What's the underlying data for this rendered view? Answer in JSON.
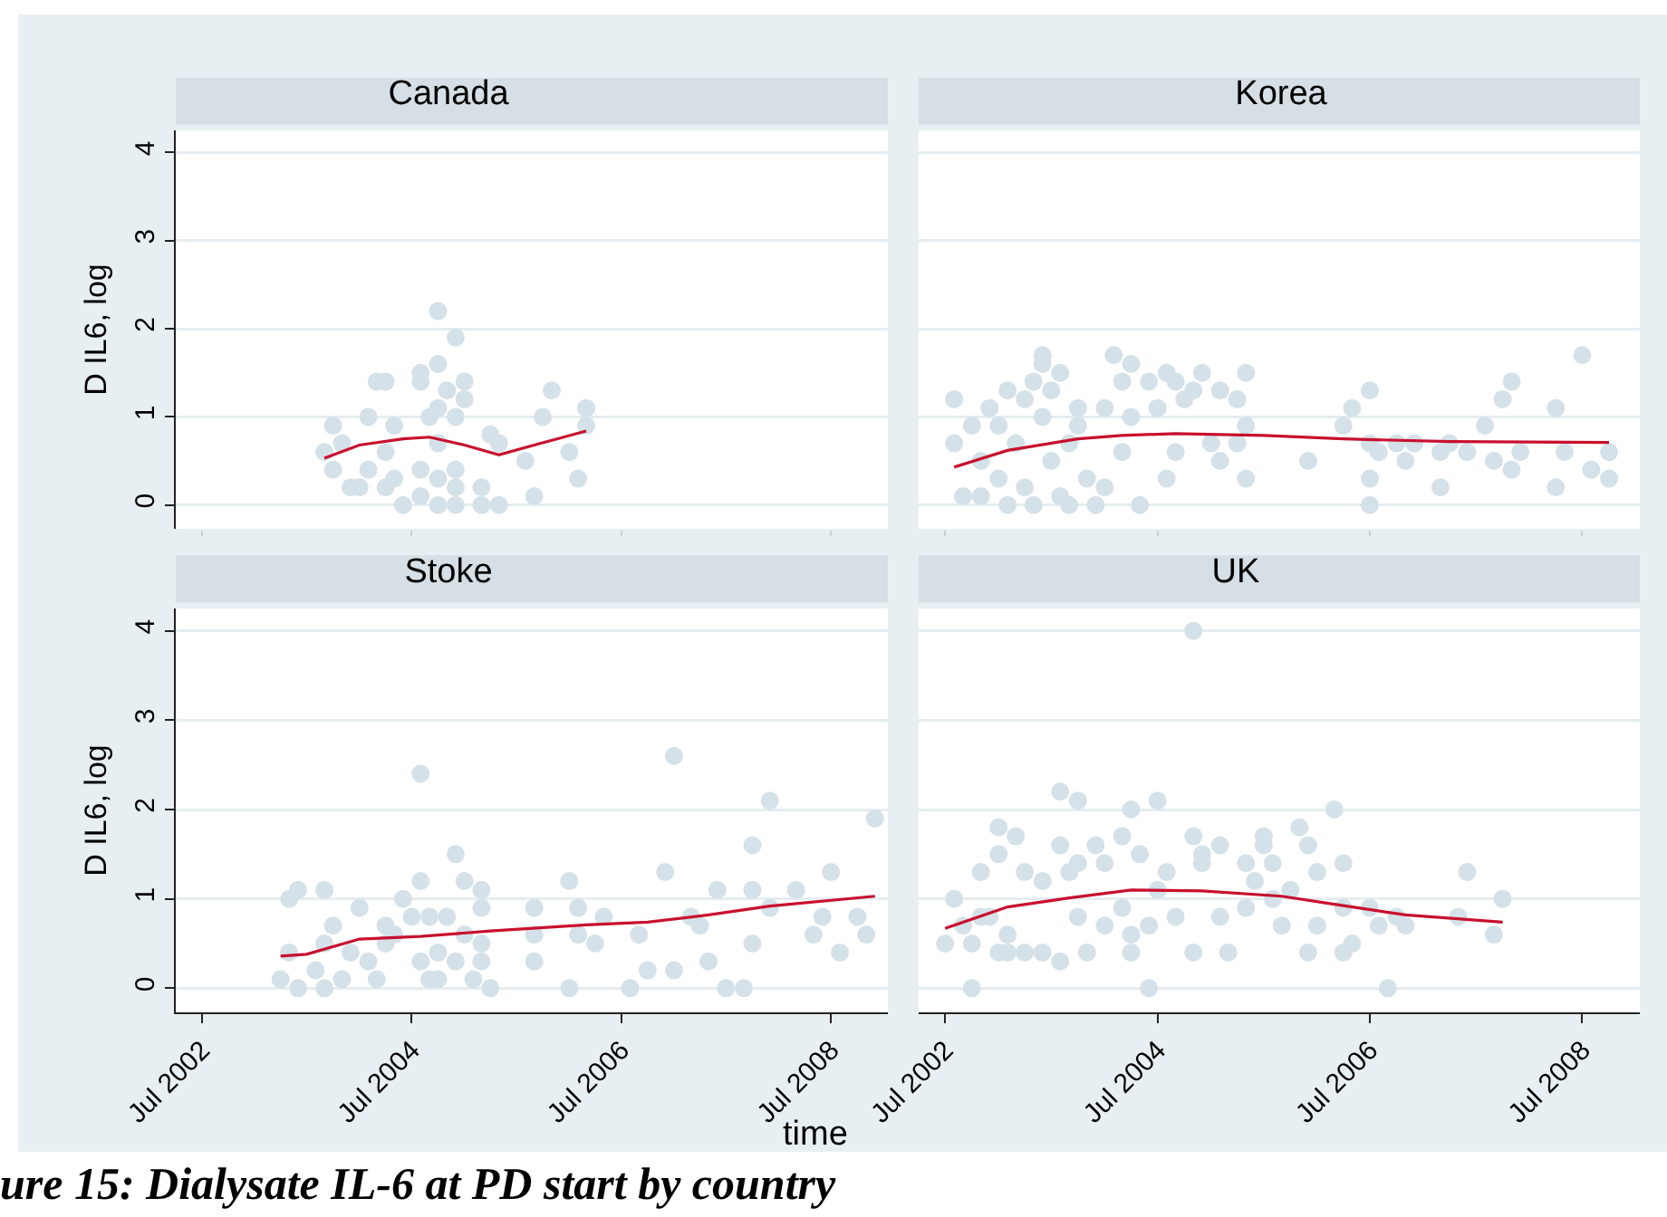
{
  "chart_data": [
    {
      "type": "scatter",
      "title": "Canada",
      "ylabel": "D IL6, log",
      "xlim": [
        "2002-04-01",
        "2009-01-15"
      ],
      "xticks": [
        {
          "value": "2002-07-01",
          "label": null
        },
        {
          "value": "2004-07-01",
          "label": null
        },
        {
          "value": "2006-07-01",
          "label": null
        },
        {
          "value": "2008-07-01",
          "label": null
        }
      ],
      "ylim": [
        -0.27,
        4.25
      ],
      "yticks": [
        0,
        1,
        2,
        3,
        4
      ],
      "grid": "y",
      "tick_labels": "y",
      "marker": "circle",
      "series": [
        {
          "color": "#d5e1e8",
          "x": [
            "2003-09",
            "2003-10",
            "2003-10",
            "2003-11",
            "2003-12",
            "2004-01",
            "2004-02",
            "2004-02",
            "2004-03",
            "2004-04",
            "2004-04",
            "2004-04",
            "2004-05",
            "2004-05",
            "2004-06",
            "2004-08",
            "2004-08",
            "2004-10",
            "2004-10",
            "2004-12",
            "2004-10",
            "2004-09",
            "2004-10",
            "2004-08",
            "2004-10",
            "2004-08",
            "2004-10",
            "2004-11",
            "2005-01",
            "2005-01",
            "2004-12",
            "2004-12",
            "2004-12",
            "2004-12",
            "2005-03",
            "2005-04",
            "2005-05",
            "2005-03",
            "2005-05",
            "2005-08",
            "2005-09",
            "2005-10",
            "2005-11",
            "2006-01",
            "2006-03",
            "2006-02",
            "2006-03"
          ],
          "values": [
            0.6,
            0.9,
            0.4,
            0.7,
            0.2,
            0.2,
            1.0,
            0.4,
            1.4,
            1.4,
            0.6,
            0.2,
            0.9,
            0.3,
            0.0,
            1.4,
            1.5,
            1.6,
            2.2,
            1.9,
            1.1,
            1.0,
            0.7,
            0.4,
            0.3,
            0.1,
            0.0,
            1.3,
            1.4,
            1.2,
            1.0,
            0.4,
            0.2,
            0.0,
            0.2,
            0.8,
            0.7,
            0.0,
            0.0,
            0.5,
            0.1,
            1.0,
            1.3,
            0.6,
            1.1,
            0.3,
            0.9
          ]
        },
        {
          "type": "line",
          "color": "#c8102e",
          "marker": "none",
          "x": [
            "2003-09",
            "2004-01",
            "2004-06",
            "2004-09",
            "2005-01",
            "2005-05",
            "2005-09",
            "2006-03"
          ],
          "values": [
            0.53,
            0.68,
            0.75,
            0.77,
            0.68,
            0.57,
            0.68,
            0.84
          ]
        }
      ]
    },
    {
      "type": "scatter",
      "title": "Korea",
      "xlim": [
        "2002-04-01",
        "2009-01-15"
      ],
      "xticks": [
        {
          "value": "2002-07-01",
          "label": null
        },
        {
          "value": "2004-07-01",
          "label": null
        },
        {
          "value": "2006-07-01",
          "label": null
        },
        {
          "value": "2008-07-01",
          "label": null
        }
      ],
      "ylim": [
        -0.27,
        4.25
      ],
      "yticks": [
        0,
        1,
        2,
        3,
        4
      ],
      "grid": "y",
      "tick_labels": false,
      "marker": "circle",
      "series": [
        {
          "color": "#d5e1e8",
          "x": [
            "2002-08",
            "2002-08",
            "2002-09",
            "2002-10",
            "2002-11",
            "2002-11",
            "2002-12",
            "2003-01",
            "2003-01",
            "2003-02",
            "2003-02",
            "2003-03",
            "2003-04",
            "2003-04",
            "2003-05",
            "2003-05",
            "2003-06",
            "2003-06",
            "2003-06",
            "2003-07",
            "2003-07",
            "2003-08",
            "2003-08",
            "2003-09",
            "2003-09",
            "2003-10",
            "2003-10",
            "2003-11",
            "2003-12",
            "2004-01",
            "2004-01",
            "2004-02",
            "2004-03",
            "2004-04",
            "2004-03",
            "2004-04",
            "2004-05",
            "2004-06",
            "2004-07",
            "2004-08",
            "2004-08",
            "2004-09",
            "2004-09",
            "2004-10",
            "2004-11",
            "2004-12",
            "2005-01",
            "2005-02",
            "2005-02",
            "2005-05",
            "2005-04",
            "2005-05",
            "2005-05",
            "2005-04",
            "2005-12",
            "2006-04",
            "2006-05",
            "2006-07",
            "2006-07",
            "2006-07",
            "2006-07",
            "2006-08",
            "2006-10",
            "2006-11",
            "2006-12",
            "2007-03",
            "2007-03",
            "2007-04",
            "2007-06",
            "2007-08",
            "2007-09",
            "2007-10",
            "2007-11",
            "2007-11",
            "2007-12",
            "2008-04",
            "2008-04",
            "2008-05",
            "2008-07",
            "2008-08",
            "2008-10",
            "2008-10"
          ],
          "values": [
            1.2,
            0.7,
            0.1,
            0.9,
            0.5,
            0.1,
            1.1,
            0.9,
            0.3,
            1.3,
            0.0,
            0.7,
            0.2,
            1.2,
            1.4,
            0.0,
            1.7,
            1.6,
            1.0,
            0.5,
            1.3,
            0.1,
            1.5,
            0.7,
            0.0,
            1.1,
            0.9,
            0.3,
            0.0,
            1.1,
            0.2,
            1.7,
            1.4,
            1.6,
            0.6,
            1.0,
            0.0,
            1.4,
            1.1,
            1.5,
            0.3,
            0.6,
            1.4,
            1.2,
            1.3,
            1.5,
            0.7,
            1.3,
            0.5,
            1.5,
            1.2,
            0.9,
            0.3,
            0.7,
            0.5,
            0.9,
            1.1,
            1.3,
            0.7,
            0.3,
            0.0,
            0.6,
            0.7,
            0.5,
            0.7,
            0.2,
            0.6,
            0.7,
            0.6,
            0.9,
            0.5,
            1.2,
            1.4,
            0.4,
            0.6,
            0.2,
            1.1,
            0.6,
            1.7,
            0.4,
            0.6,
            0.3
          ]
        },
        {
          "type": "line",
          "color": "#c8102e",
          "marker": "none",
          "x": [
            "2002-08",
            "2003-02",
            "2003-10",
            "2004-03",
            "2004-09",
            "2005-07",
            "2006-04",
            "2007-04",
            "2008-10"
          ],
          "values": [
            0.43,
            0.62,
            0.75,
            0.79,
            0.81,
            0.79,
            0.75,
            0.72,
            0.71
          ]
        }
      ]
    },
    {
      "type": "scatter",
      "title": "Stoke",
      "ylabel": "D IL6, log",
      "xlim": [
        "2002-04-01",
        "2009-01-15"
      ],
      "xticks": [
        {
          "value": "2002-07-01",
          "label": "Jul 2002"
        },
        {
          "value": "2004-07-01",
          "label": "Jul 2004"
        },
        {
          "value": "2006-07-01",
          "label": "Jul 2006"
        },
        {
          "value": "2008-07-01",
          "label": "Jul 2008"
        }
      ],
      "ylim": [
        -0.27,
        4.25
      ],
      "yticks": [
        0,
        1,
        2,
        3,
        4
      ],
      "grid": "y",
      "marker": "circle",
      "series": [
        {
          "color": "#d5e1e8",
          "x": [
            "2003-04",
            "2003-05",
            "2003-05",
            "2003-06",
            "2003-06",
            "2003-08",
            "2003-09",
            "2003-09",
            "2003-09",
            "2003-10",
            "2003-11",
            "2003-12",
            "2004-01",
            "2004-02",
            "2004-03",
            "2004-04",
            "2004-05",
            "2004-04",
            "2004-06",
            "2004-07",
            "2004-08",
            "2004-08",
            "2004-08",
            "2004-09",
            "2004-09",
            "2004-10",
            "2004-11",
            "2004-10",
            "2004-12",
            "2005-01",
            "2004-12",
            "2005-01",
            "2005-02",
            "2005-03",
            "2005-03",
            "2005-03",
            "2005-03",
            "2005-04",
            "2005-09",
            "2005-09",
            "2005-09",
            "2006-01",
            "2006-01",
            "2006-02",
            "2006-02",
            "2006-04",
            "2006-05",
            "2006-08",
            "2006-09",
            "2006-10",
            "2006-12",
            "2007-01",
            "2007-01",
            "2007-03",
            "2007-04",
            "2007-05",
            "2007-06",
            "2007-07",
            "2007-09",
            "2007-10",
            "2007-10",
            "2007-10",
            "2007-12",
            "2007-12",
            "2008-03",
            "2008-05",
            "2008-06",
            "2008-07",
            "2008-08",
            "2008-10",
            "2008-11",
            "2008-12"
          ],
          "values": [
            0.1,
            0.4,
            1.0,
            0.0,
            1.1,
            0.2,
            0.0,
            1.1,
            0.5,
            0.7,
            0.1,
            0.4,
            0.9,
            0.3,
            0.1,
            0.7,
            0.6,
            0.5,
            1.0,
            0.8,
            2.4,
            1.2,
            0.3,
            0.1,
            0.8,
            0.4,
            0.8,
            0.1,
            1.5,
            1.2,
            0.3,
            0.6,
            0.1,
            1.1,
            0.9,
            0.5,
            0.3,
            0.0,
            0.6,
            0.9,
            0.3,
            1.2,
            0.0,
            0.6,
            0.9,
            0.5,
            0.8,
            0.0,
            0.6,
            0.2,
            1.3,
            0.2,
            2.6,
            0.8,
            0.7,
            0.3,
            1.1,
            0.0,
            0.0,
            1.1,
            0.5,
            1.6,
            2.1,
            0.9,
            1.1,
            0.6,
            0.8,
            1.3,
            0.4,
            0.8,
            0.6,
            1.9
          ]
        },
        {
          "type": "line",
          "color": "#c8102e",
          "marker": "none",
          "x": [
            "2003-04",
            "2003-07",
            "2004-01",
            "2004-08",
            "2005-04",
            "2006-03",
            "2006-10",
            "2007-05",
            "2007-12",
            "2008-12"
          ],
          "values": [
            0.36,
            0.38,
            0.55,
            0.58,
            0.64,
            0.71,
            0.74,
            0.82,
            0.92,
            1.03
          ]
        }
      ]
    },
    {
      "type": "scatter",
      "title": "UK",
      "xlabel": "time",
      "annotations": [
        "ure 15: Dialysate IL-6 at PD start by country"
      ],
      "xlim": [
        "2002-04-01",
        "2009-01-15"
      ],
      "xticks": [
        {
          "value": "2002-07-01",
          "label": "Jul 2002"
        },
        {
          "value": "2004-07-01",
          "label": "Jul 2004"
        },
        {
          "value": "2006-07-01",
          "label": "Jul 2006"
        },
        {
          "value": "2008-07-01",
          "label": "Jul 2008"
        }
      ],
      "ylim": [
        -0.27,
        4.25
      ],
      "yticks": [
        0,
        1,
        2,
        3,
        4
      ],
      "grid": "y",
      "tick_labels": "x",
      "marker": "circle",
      "series": [
        {
          "color": "#d5e1e8",
          "x": [
            "2002-07",
            "2002-08",
            "2002-09",
            "2002-10",
            "2002-10",
            "2002-11",
            "2002-11",
            "2002-12",
            "2003-01",
            "2003-01",
            "2003-01",
            "2003-02",
            "2003-02",
            "2003-03",
            "2003-04",
            "2003-04",
            "2003-06",
            "2003-06",
            "2003-08",
            "2003-08",
            "2003-08",
            "2003-10",
            "2003-09",
            "2003-10",
            "2003-10",
            "2003-11",
            "2003-12",
            "2004-01",
            "2004-01",
            "2004-03",
            "2004-03",
            "2004-04",
            "2004-04",
            "2004-04",
            "2004-05",
            "2004-06",
            "2004-06",
            "2004-07",
            "2004-07",
            "2004-08",
            "2004-09",
            "2004-11",
            "2004-11",
            "2004-11",
            "2004-12",
            "2004-12",
            "2005-02",
            "2005-02",
            "2005-03",
            "2005-05",
            "2005-05",
            "2005-06",
            "2005-07",
            "2005-07",
            "2005-08",
            "2005-08",
            "2005-09",
            "2005-10",
            "2005-11",
            "2005-12",
            "2005-12",
            "2006-01",
            "2006-01",
            "2006-03",
            "2006-04",
            "2006-04",
            "2006-04",
            "2006-05",
            "2006-07",
            "2006-08",
            "2006-09",
            "2006-10",
            "2006-11",
            "2007-05",
            "2007-06",
            "2007-09",
            "2007-10"
          ],
          "values": [
            0.5,
            1.0,
            0.7,
            0.5,
            0.0,
            1.3,
            0.8,
            0.8,
            1.8,
            1.5,
            0.4,
            0.4,
            0.6,
            1.7,
            1.3,
            0.4,
            1.2,
            0.4,
            0.3,
            2.2,
            1.6,
            2.1,
            1.3,
            0.8,
            1.4,
            0.4,
            1.6,
            0.7,
            1.4,
            0.9,
            1.7,
            2.0,
            0.6,
            0.4,
            1.5,
            0.0,
            0.7,
            2.1,
            1.1,
            1.3,
            0.8,
            0.4,
            1.7,
            4.0,
            1.5,
            1.4,
            1.6,
            0.8,
            0.4,
            1.4,
            0.9,
            1.2,
            1.7,
            1.6,
            1.0,
            1.4,
            0.7,
            1.1,
            1.8,
            1.6,
            0.4,
            1.3,
            0.7,
            2.0,
            1.4,
            0.9,
            0.4,
            0.5,
            0.9,
            0.7,
            0.0,
            0.8,
            0.7,
            0.8,
            1.3,
            0.6,
            1.0
          ]
        },
        {
          "type": "line",
          "color": "#c8102e",
          "marker": "none",
          "x": [
            "2002-07",
            "2003-02",
            "2003-09",
            "2004-04",
            "2004-12",
            "2005-09",
            "2006-03",
            "2006-11",
            "2007-10"
          ],
          "values": [
            0.67,
            0.91,
            1.01,
            1.1,
            1.09,
            1.03,
            0.94,
            0.82,
            0.74
          ]
        }
      ]
    }
  ]
}
